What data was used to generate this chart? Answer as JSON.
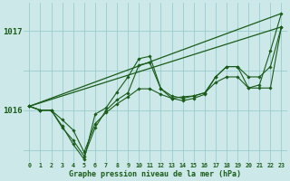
{
  "background_color": "#cce8e8",
  "plot_bg_color": "#cce8e8",
  "grid_color": "#99cccc",
  "line_color": "#1a5c1a",
  "marker_color": "#1a5c1a",
  "xlabel": "Graphe pression niveau de la mer (hPa)",
  "yticks": [
    1016,
    1017
  ],
  "ylim": [
    1015.35,
    1017.35
  ],
  "xlim": [
    -0.5,
    23.5
  ],
  "hours": [
    0,
    1,
    2,
    3,
    4,
    5,
    6,
    7,
    8,
    9,
    10,
    11,
    12,
    13,
    14,
    15,
    16,
    17,
    18,
    19,
    20,
    21,
    22,
    23
  ],
  "series_smooth": [
    {
      "x": [
        0,
        23
      ],
      "y": [
        1016.05,
        1017.05
      ]
    },
    {
      "x": [
        0,
        23
      ],
      "y": [
        1016.05,
        1017.22
      ]
    }
  ],
  "series_marked": [
    [
      1016.05,
      1016.0,
      1016.0,
      1015.88,
      1015.75,
      1015.47,
      1015.83,
      1015.97,
      1016.08,
      1016.17,
      1016.27,
      1016.27,
      1016.2,
      1016.15,
      1016.17,
      1016.18,
      1016.22,
      1016.35,
      1016.42,
      1016.42,
      1016.28,
      1016.28,
      1016.28,
      1017.05
    ],
    [
      1016.05,
      1016.0,
      1016.0,
      1015.78,
      1015.62,
      1015.42,
      1015.78,
      1016.0,
      1016.13,
      1016.22,
      1016.57,
      1016.6,
      1016.27,
      1016.18,
      1016.15,
      1016.18,
      1016.22,
      1016.42,
      1016.55,
      1016.55,
      1016.42,
      1016.42,
      1016.55,
      1017.05
    ],
    [
      1016.05,
      1016.0,
      1016.0,
      1015.8,
      1015.57,
      1015.38,
      1015.95,
      1016.03,
      1016.23,
      1016.42,
      1016.65,
      1016.68,
      1016.27,
      1016.15,
      1016.12,
      1016.15,
      1016.2,
      1016.42,
      1016.55,
      1016.55,
      1016.28,
      1016.32,
      1016.75,
      1017.22
    ]
  ]
}
